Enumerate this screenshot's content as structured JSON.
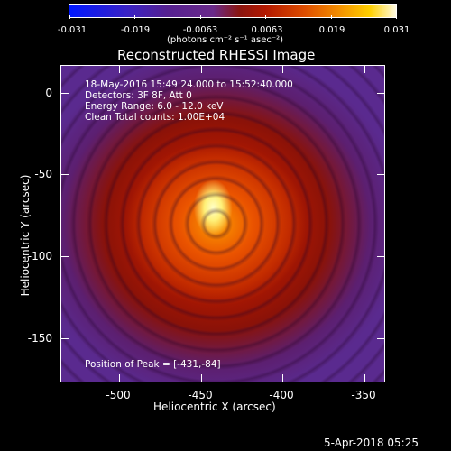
{
  "colorbar": {
    "tick_labels": [
      "-0.031",
      "-0.019",
      "-0.0063",
      "0.0063",
      "0.019",
      "0.031"
    ],
    "units": "(photons cm⁻² s⁻¹ asec⁻²)"
  },
  "title": "Reconstructed RHESSI Image",
  "annotations": {
    "time_range": "18-May-2016 15:49:24.000 to 15:52:40.000",
    "detectors": "Detectors: 3F 8F, Att 0",
    "energy": "Energy Range: 6.0 - 12.0 keV",
    "clean": "Clean     Total counts: 1.00E+04",
    "peak": "Position of Peak = [-431,-84]"
  },
  "axes": {
    "x_title": "Heliocentric X (arcsec)",
    "y_title": "Heliocentric Y (arcsec)",
    "x_ticks": [
      "-500",
      "-450",
      "-400",
      "-350"
    ],
    "y_ticks": [
      "0",
      "-50",
      "-100",
      "-150"
    ]
  },
  "footer": {
    "date": "5-Apr-2018 05:25"
  }
}
